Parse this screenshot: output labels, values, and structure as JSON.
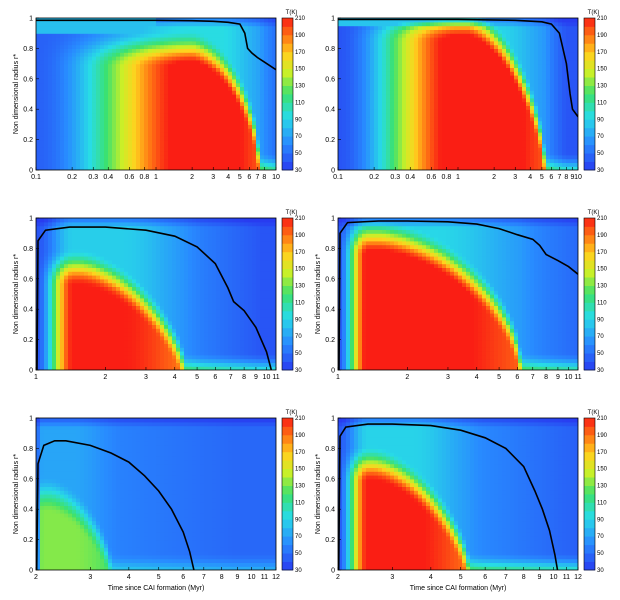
{
  "chart_data": [
    {
      "type": "heatmap",
      "panel": "top-left",
      "xscale": "log",
      "xlim": [
        0.1,
        10
      ],
      "xticks": [
        0.1,
        0.2,
        0.3,
        0.4,
        0.6,
        0.8,
        1,
        2,
        3,
        4,
        5,
        6,
        7,
        8,
        10
      ],
      "xtick_labels": [
        "0.1",
        "0.2",
        "0.3",
        "0.4",
        "0.6",
        "0.8",
        "1",
        "2",
        "3",
        "4",
        "5",
        "6",
        "7",
        "8",
        "10"
      ],
      "ylim": [
        0,
        1
      ],
      "yticks": [
        "0",
        "0.2",
        "0.4",
        "0.6",
        "0.8",
        "1"
      ],
      "ylabel": "Non dimensional radius r*",
      "xlabel": "",
      "colorbar": {
        "title": "T(K)",
        "min": 30,
        "max": 210,
        "ticks": [
          "210",
          "190",
          "170",
          "150",
          "130",
          "110",
          "90",
          "70",
          "50",
          "30"
        ]
      },
      "field": {
        "t0": 0.1,
        "Tin": 205,
        "shell_r": 0.9,
        "shell_end_x": 0.6,
        "core_r": 0.8,
        "warm_end": 2,
        "shrink_start": 2,
        "t_end": 7.2,
        "cool_len": 1.6,
        "Tfloor": 45,
        "shape": 0.5
      },
      "contour": [
        [
          0.1,
          0.985
        ],
        [
          0.5,
          0.985
        ],
        [
          1,
          0.985
        ],
        [
          2,
          0.982
        ],
        [
          3,
          0.978
        ],
        [
          4,
          0.972
        ],
        [
          5,
          0.96
        ],
        [
          5.5,
          0.9
        ],
        [
          5.8,
          0.8
        ],
        [
          6.3,
          0.77
        ],
        [
          7,
          0.74
        ],
        [
          8,
          0.71
        ],
        [
          10,
          0.66
        ]
      ]
    },
    {
      "type": "heatmap",
      "panel": "top-right",
      "xscale": "log",
      "xlim": [
        0.1,
        10
      ],
      "xticks": [
        0.1,
        0.2,
        0.3,
        0.4,
        0.6,
        0.8,
        1,
        2,
        3,
        4,
        5,
        6,
        7,
        8,
        9,
        10
      ],
      "xtick_labels": [
        "0.1",
        "0.2",
        "0.3",
        "0.4",
        "0.6",
        "0.8",
        "1",
        "2",
        "3",
        "4",
        "5",
        "6",
        "7",
        "8",
        "9",
        "10"
      ],
      "ylim": [
        0,
        1
      ],
      "yticks": [
        "0",
        "0.2",
        "0.4",
        "0.6",
        "0.8",
        "1"
      ],
      "ylabel": "",
      "xlabel": "",
      "colorbar": {
        "title": "T(K)",
        "min": 30,
        "max": 210,
        "ticks": [
          "210",
          "190",
          "170",
          "150",
          "130",
          "110",
          "90",
          "70",
          "50",
          "30"
        ]
      },
      "field": {
        "t0": 0.1,
        "Tin": 210,
        "shell_r": 0.94,
        "shell_end_x": 0.2,
        "core_r": 0.97,
        "warm_end": 1,
        "shrink_start": 1.2,
        "t_end": 5.3,
        "cool_len": 1.5,
        "Tfloor": 40,
        "shape": 0.6
      },
      "contour": [
        [
          0.1,
          0.99
        ],
        [
          1,
          0.99
        ],
        [
          3,
          0.985
        ],
        [
          5,
          0.975
        ],
        [
          6,
          0.96
        ],
        [
          7,
          0.9
        ],
        [
          8,
          0.7
        ],
        [
          8.6,
          0.5
        ],
        [
          9,
          0.4
        ],
        [
          10,
          0.35
        ]
      ]
    },
    {
      "type": "heatmap",
      "panel": "middle-left",
      "xscale": "log",
      "xlim": [
        1,
        11
      ],
      "xticks": [
        1,
        2,
        3,
        4,
        5,
        6,
        7,
        8,
        9,
        10,
        11
      ],
      "xtick_labels": [
        "1",
        "2",
        "3",
        "4",
        "5",
        "6",
        "7",
        "8",
        "9",
        "10",
        "11"
      ],
      "ylim": [
        0,
        1
      ],
      "yticks": [
        "0",
        "0.2",
        "0.4",
        "0.6",
        "0.8",
        "1"
      ],
      "ylabel": "Non dimensional radius r*",
      "xlabel": "",
      "colorbar": {
        "title": "T(K)",
        "min": 30,
        "max": 210,
        "ticks": [
          "210",
          "190",
          "170",
          "150",
          "130",
          "110",
          "90",
          "70",
          "50",
          "30"
        ]
      },
      "field": {
        "t0": 1,
        "Tin": 200,
        "shell_r": 0,
        "shell_end_x": 0,
        "core_r": 0.68,
        "warm_end": 1.45,
        "shrink_start": 1.55,
        "t_end": 4.4,
        "cool_len": 2.2,
        "Tfloor": 40,
        "shape": 0.7
      },
      "contour": [
        [
          1.01,
          0
        ],
        [
          1.02,
          0.85
        ],
        [
          1.1,
          0.92
        ],
        [
          1.4,
          0.94
        ],
        [
          2,
          0.94
        ],
        [
          3,
          0.92
        ],
        [
          4,
          0.88
        ],
        [
          5,
          0.81
        ],
        [
          6,
          0.7
        ],
        [
          6.8,
          0.54
        ],
        [
          7.2,
          0.45
        ],
        [
          8,
          0.39
        ],
        [
          9,
          0.28
        ],
        [
          10,
          0.12
        ],
        [
          10.5,
          0
        ]
      ]
    },
    {
      "type": "heatmap",
      "panel": "middle-right",
      "xscale": "log",
      "xlim": [
        1,
        11
      ],
      "xticks": [
        1,
        2,
        3,
        4,
        5,
        6,
        7,
        8,
        9,
        10,
        11
      ],
      "xtick_labels": [
        "1",
        "2",
        "3",
        "4",
        "5",
        "6",
        "7",
        "8",
        "9",
        "10",
        "11"
      ],
      "ylim": [
        0,
        1
      ],
      "yticks": [
        "0",
        "0.2",
        "0.4",
        "0.6",
        "0.8",
        "1"
      ],
      "ylabel": "Non dimensional radius r*",
      "xlabel": "",
      "colorbar": {
        "title": "T(K)",
        "min": 30,
        "max": 210,
        "ticks": [
          "210",
          "190",
          "170",
          "150",
          "130",
          "110",
          "90",
          "70",
          "50",
          "30"
        ]
      },
      "field": {
        "t0": 1,
        "Tin": 205,
        "shell_r": 0,
        "shell_end_x": 0,
        "core_r": 0.88,
        "warm_end": 1.35,
        "shrink_start": 1.5,
        "t_end": 6.2,
        "cool_len": 2.2,
        "Tfloor": 42,
        "shape": 0.55
      },
      "contour": [
        [
          1.01,
          0
        ],
        [
          1.02,
          0.9
        ],
        [
          1.1,
          0.97
        ],
        [
          1.5,
          0.98
        ],
        [
          2,
          0.98
        ],
        [
          3,
          0.975
        ],
        [
          4,
          0.96
        ],
        [
          5,
          0.93
        ],
        [
          6,
          0.89
        ],
        [
          7,
          0.86
        ],
        [
          7.5,
          0.82
        ],
        [
          8,
          0.76
        ],
        [
          9,
          0.72
        ],
        [
          10,
          0.68
        ],
        [
          11,
          0.63
        ]
      ]
    },
    {
      "type": "heatmap",
      "panel": "bottom-left",
      "xscale": "log",
      "xlim": [
        2,
        12
      ],
      "xticks": [
        2,
        3,
        4,
        5,
        6,
        7,
        8,
        9,
        10,
        11,
        12
      ],
      "xtick_labels": [
        "2",
        "3",
        "4",
        "5",
        "6",
        "7",
        "8",
        "9",
        "10",
        "11",
        "12"
      ],
      "ylim": [
        0,
        1
      ],
      "yticks": [
        "0",
        "0.2",
        "0.4",
        "0.6",
        "0.8",
        "1"
      ],
      "ylabel": "Non dimensional radius r*",
      "xlabel": "Time since CAI formation (Myr)",
      "colorbar": {
        "title": "T(K)",
        "min": 30,
        "max": 210,
        "ticks": [
          "210",
          "190",
          "170",
          "150",
          "130",
          "110",
          "90",
          "70",
          "50",
          "30"
        ]
      },
      "field": {
        "t0": 2,
        "Tin": 115,
        "shell_r": 0,
        "shell_end_x": 0,
        "core_r": 0.5,
        "warm_end": 2.1,
        "shrink_start": 2.2,
        "t_end": 3.5,
        "cool_len": 2.5,
        "Tfloor": 48,
        "shape": 0.7
      },
      "contour": [
        [
          2.01,
          0
        ],
        [
          2.03,
          0.7
        ],
        [
          2.12,
          0.82
        ],
        [
          2.3,
          0.85
        ],
        [
          2.5,
          0.85
        ],
        [
          3,
          0.82
        ],
        [
          3.5,
          0.77
        ],
        [
          4,
          0.71
        ],
        [
          4.5,
          0.62
        ],
        [
          5,
          0.52
        ],
        [
          5.5,
          0.4
        ],
        [
          6,
          0.25
        ],
        [
          6.3,
          0.12
        ],
        [
          6.5,
          0
        ]
      ]
    },
    {
      "type": "heatmap",
      "panel": "bottom-right",
      "xscale": "log",
      "xlim": [
        2,
        12
      ],
      "xticks": [
        2,
        3,
        4,
        5,
        6,
        7,
        8,
        9,
        10,
        11,
        12
      ],
      "xtick_labels": [
        "2",
        "3",
        "4",
        "5",
        "6",
        "7",
        "8",
        "9",
        "10",
        "11",
        "12"
      ],
      "ylim": [
        0,
        1
      ],
      "yticks": [
        "0",
        "0.2",
        "0.4",
        "0.6",
        "0.8",
        "1"
      ],
      "ylabel": "Non dimensional radius r*",
      "xlabel": "Time since CAI formation (Myr)",
      "colorbar": {
        "title": "T(K)",
        "min": 30,
        "max": 210,
        "ticks": [
          "210",
          "190",
          "170",
          "150",
          "130",
          "110",
          "90",
          "70",
          "50",
          "30"
        ]
      },
      "field": {
        "t0": 2,
        "Tin": 200,
        "shell_r": 0,
        "shell_end_x": 0,
        "core_r": 0.7,
        "warm_end": 2.5,
        "shrink_start": 2.6,
        "t_end": 5.3,
        "cool_len": 2.5,
        "Tfloor": 42,
        "shape": 0.7
      },
      "contour": [
        [
          2.01,
          0
        ],
        [
          2.03,
          0.88
        ],
        [
          2.12,
          0.94
        ],
        [
          2.5,
          0.96
        ],
        [
          3,
          0.96
        ],
        [
          4,
          0.95
        ],
        [
          5,
          0.92
        ],
        [
          6,
          0.87
        ],
        [
          7,
          0.8
        ],
        [
          8,
          0.68
        ],
        [
          8.7,
          0.52
        ],
        [
          9.2,
          0.4
        ],
        [
          9.7,
          0.26
        ],
        [
          10.1,
          0.1
        ],
        [
          10.3,
          0
        ]
      ]
    }
  ]
}
